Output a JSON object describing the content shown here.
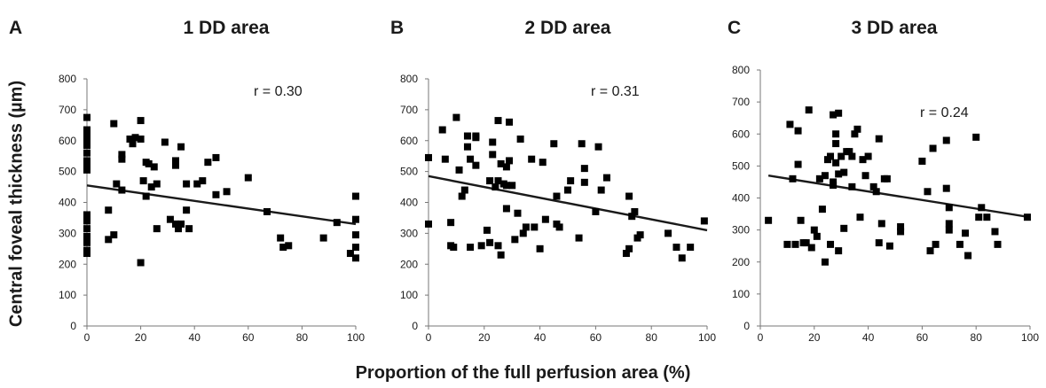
{
  "figure": {
    "ylabel": "Central foveal thickness (µm)",
    "xlabel": "Proportion of the full perfusion area (%)"
  },
  "chart_data": [
    {
      "type": "scatter",
      "panel": "A",
      "title": "1 DD area",
      "stat_label": "r = 0.30",
      "xlim": [
        0,
        100
      ],
      "ylim": [
        0,
        800
      ],
      "xticks": [
        0,
        20,
        40,
        60,
        80,
        100
      ],
      "yticks": [
        0,
        100,
        200,
        300,
        400,
        500,
        600,
        700,
        800
      ],
      "trendline": [
        [
          0,
          455
        ],
        [
          100,
          330
        ]
      ],
      "points": [
        [
          0,
          675
        ],
        [
          0,
          635
        ],
        [
          0,
          625
        ],
        [
          0,
          610
        ],
        [
          0,
          600
        ],
        [
          0,
          585
        ],
        [
          0,
          560
        ],
        [
          0,
          535
        ],
        [
          0,
          520
        ],
        [
          0,
          505
        ],
        [
          0,
          360
        ],
        [
          0,
          340
        ],
        [
          0,
          315
        ],
        [
          0,
          290
        ],
        [
          0,
          270
        ],
        [
          0,
          245
        ],
        [
          0,
          235
        ],
        [
          8,
          375
        ],
        [
          8,
          280
        ],
        [
          10,
          295
        ],
        [
          10,
          655
        ],
        [
          11,
          460
        ],
        [
          13,
          555
        ],
        [
          13,
          540
        ],
        [
          13,
          440
        ],
        [
          16,
          605
        ],
        [
          17,
          590
        ],
        [
          18,
          610
        ],
        [
          20,
          665
        ],
        [
          20,
          605
        ],
        [
          20,
          205
        ],
        [
          21,
          470
        ],
        [
          22,
          530
        ],
        [
          22,
          420
        ],
        [
          23,
          525
        ],
        [
          24,
          450
        ],
        [
          25,
          515
        ],
        [
          26,
          315
        ],
        [
          26,
          460
        ],
        [
          29,
          595
        ],
        [
          31,
          345
        ],
        [
          33,
          520
        ],
        [
          33,
          535
        ],
        [
          33,
          330
        ],
        [
          34,
          315
        ],
        [
          35,
          580
        ],
        [
          35,
          330
        ],
        [
          37,
          460
        ],
        [
          37,
          375
        ],
        [
          38,
          315
        ],
        [
          41,
          460
        ],
        [
          43,
          470
        ],
        [
          45,
          530
        ],
        [
          48,
          545
        ],
        [
          48,
          425
        ],
        [
          52,
          435
        ],
        [
          60,
          480
        ],
        [
          67,
          370
        ],
        [
          72,
          285
        ],
        [
          73,
          255
        ],
        [
          75,
          260
        ],
        [
          88,
          285
        ],
        [
          93,
          335
        ],
        [
          98,
          235
        ],
        [
          100,
          420
        ],
        [
          100,
          345
        ],
        [
          100,
          295
        ],
        [
          100,
          255
        ],
        [
          100,
          220
        ]
      ]
    },
    {
      "type": "scatter",
      "panel": "B",
      "title": "2 DD area",
      "stat_label": "r = 0.31",
      "xlim": [
        0,
        100
      ],
      "ylim": [
        0,
        800
      ],
      "xticks": [
        0,
        20,
        40,
        60,
        80,
        100
      ],
      "yticks": [
        0,
        100,
        200,
        300,
        400,
        500,
        600,
        700,
        800
      ],
      "trendline": [
        [
          0,
          485
        ],
        [
          100,
          310
        ]
      ],
      "points": [
        [
          0,
          545
        ],
        [
          0,
          330
        ],
        [
          5,
          635
        ],
        [
          6,
          540
        ],
        [
          8,
          260
        ],
        [
          8,
          335
        ],
        [
          9,
          255
        ],
        [
          10,
          675
        ],
        [
          11,
          505
        ],
        [
          12,
          420
        ],
        [
          13,
          440
        ],
        [
          14,
          615
        ],
        [
          14,
          580
        ],
        [
          15,
          255
        ],
        [
          15,
          540
        ],
        [
          17,
          520
        ],
        [
          17,
          615
        ],
        [
          17,
          610
        ],
        [
          19,
          260
        ],
        [
          21,
          310
        ],
        [
          22,
          270
        ],
        [
          22,
          470
        ],
        [
          23,
          595
        ],
        [
          23,
          555
        ],
        [
          24,
          450
        ],
        [
          25,
          665
        ],
        [
          25,
          470
        ],
        [
          25,
          260
        ],
        [
          26,
          525
        ],
        [
          26,
          230
        ],
        [
          27,
          460
        ],
        [
          28,
          515
        ],
        [
          28,
          455
        ],
        [
          28,
          380
        ],
        [
          29,
          535
        ],
        [
          29,
          660
        ],
        [
          30,
          455
        ],
        [
          31,
          280
        ],
        [
          32,
          365
        ],
        [
          33,
          605
        ],
        [
          34,
          300
        ],
        [
          35,
          320
        ],
        [
          37,
          540
        ],
        [
          38,
          320
        ],
        [
          40,
          250
        ],
        [
          41,
          530
        ],
        [
          42,
          345
        ],
        [
          45,
          590
        ],
        [
          46,
          420
        ],
        [
          46,
          330
        ],
        [
          47,
          320
        ],
        [
          50,
          440
        ],
        [
          51,
          470
        ],
        [
          54,
          285
        ],
        [
          55,
          590
        ],
        [
          56,
          510
        ],
        [
          56,
          465
        ],
        [
          60,
          370
        ],
        [
          61,
          580
        ],
        [
          62,
          440
        ],
        [
          64,
          480
        ],
        [
          71,
          235
        ],
        [
          72,
          250
        ],
        [
          72,
          420
        ],
        [
          73,
          355
        ],
        [
          74,
          370
        ],
        [
          75,
          285
        ],
        [
          76,
          295
        ],
        [
          86,
          300
        ],
        [
          89,
          255
        ],
        [
          91,
          220
        ],
        [
          94,
          255
        ],
        [
          99,
          340
        ]
      ]
    },
    {
      "type": "scatter",
      "panel": "C",
      "title": "3 DD area",
      "stat_label": "r = 0.24",
      "xlim": [
        0,
        100
      ],
      "ylim": [
        0,
        800
      ],
      "xticks": [
        0,
        20,
        40,
        60,
        80,
        100
      ],
      "yticks": [
        0,
        100,
        200,
        300,
        400,
        500,
        600,
        700,
        800
      ],
      "trendline": [
        [
          3,
          470
        ],
        [
          100,
          340
        ]
      ],
      "points": [
        [
          3,
          330
        ],
        [
          10,
          255
        ],
        [
          11,
          630
        ],
        [
          12,
          460
        ],
        [
          13,
          255
        ],
        [
          14,
          610
        ],
        [
          14,
          505
        ],
        [
          15,
          330
        ],
        [
          16,
          260
        ],
        [
          17,
          260
        ],
        [
          18,
          675
        ],
        [
          19,
          245
        ],
        [
          20,
          300
        ],
        [
          21,
          280
        ],
        [
          22,
          460
        ],
        [
          23,
          365
        ],
        [
          24,
          200
        ],
        [
          24,
          470
        ],
        [
          25,
          520
        ],
        [
          26,
          530
        ],
        [
          26,
          255
        ],
        [
          27,
          440
        ],
        [
          27,
          450
        ],
        [
          27,
          660
        ],
        [
          28,
          600
        ],
        [
          28,
          570
        ],
        [
          28,
          510
        ],
        [
          29,
          235
        ],
        [
          29,
          665
        ],
        [
          29,
          475
        ],
        [
          30,
          530
        ],
        [
          31,
          305
        ],
        [
          31,
          480
        ],
        [
          32,
          545
        ],
        [
          33,
          545
        ],
        [
          34,
          435
        ],
        [
          34,
          530
        ],
        [
          35,
          600
        ],
        [
          36,
          615
        ],
        [
          37,
          340
        ],
        [
          38,
          520
        ],
        [
          39,
          470
        ],
        [
          40,
          530
        ],
        [
          42,
          435
        ],
        [
          43,
          420
        ],
        [
          44,
          585
        ],
        [
          44,
          260
        ],
        [
          45,
          320
        ],
        [
          46,
          460
        ],
        [
          47,
          460
        ],
        [
          48,
          250
        ],
        [
          52,
          310
        ],
        [
          52,
          295
        ],
        [
          60,
          515
        ],
        [
          62,
          420
        ],
        [
          63,
          235
        ],
        [
          64,
          555
        ],
        [
          65,
          255
        ],
        [
          69,
          580
        ],
        [
          69,
          430
        ],
        [
          70,
          300
        ],
        [
          70,
          370
        ],
        [
          70,
          320
        ],
        [
          74,
          255
        ],
        [
          76,
          290
        ],
        [
          77,
          220
        ],
        [
          80,
          590
        ],
        [
          81,
          340
        ],
        [
          82,
          370
        ],
        [
          84,
          340
        ],
        [
          87,
          295
        ],
        [
          88,
          255
        ],
        [
          99,
          340
        ]
      ]
    }
  ]
}
